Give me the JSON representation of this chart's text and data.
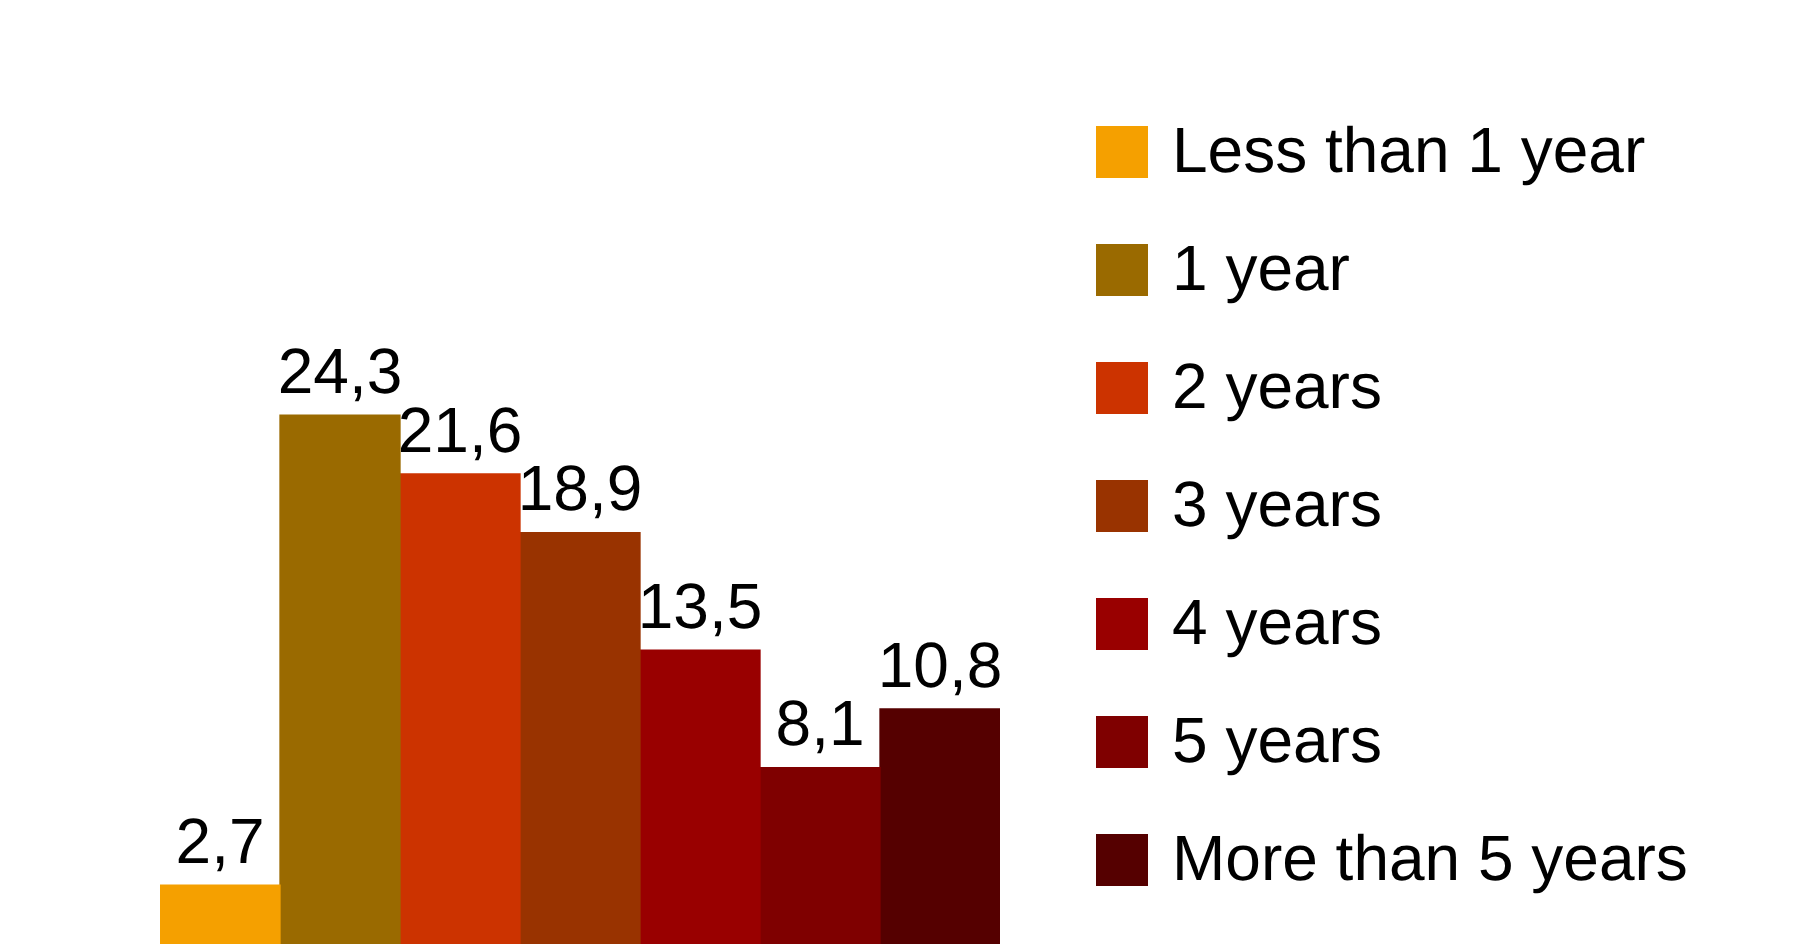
{
  "chart_data": {
    "type": "bar",
    "categories": [
      null
    ],
    "series": [
      {
        "name": "Less than 1 year",
        "color": "#f5a000",
        "values": [
          2.7
        ],
        "value_labels": [
          "2,7"
        ]
      },
      {
        "name": "1 year",
        "color": "#9a6a00",
        "values": [
          24.3
        ],
        "value_labels": [
          "24,3"
        ]
      },
      {
        "name": "2 years",
        "color": "#cc3300",
        "values": [
          21.6
        ],
        "value_labels": [
          "21,6"
        ]
      },
      {
        "name": "3 years",
        "color": "#993300",
        "values": [
          18.9
        ],
        "value_labels": [
          "18,9"
        ]
      },
      {
        "name": "4 years",
        "color": "#990000",
        "values": [
          13.5
        ],
        "value_labels": [
          "13,5"
        ]
      },
      {
        "name": "5 years",
        "color": "#7f0000",
        "values": [
          8.1
        ],
        "value_labels": [
          "8,1"
        ]
      },
      {
        "name": "More than 5 years",
        "color": "#550000",
        "values": [
          10.8
        ],
        "value_labels": [
          "10,8"
        ]
      }
    ],
    "legend": "right"
  }
}
